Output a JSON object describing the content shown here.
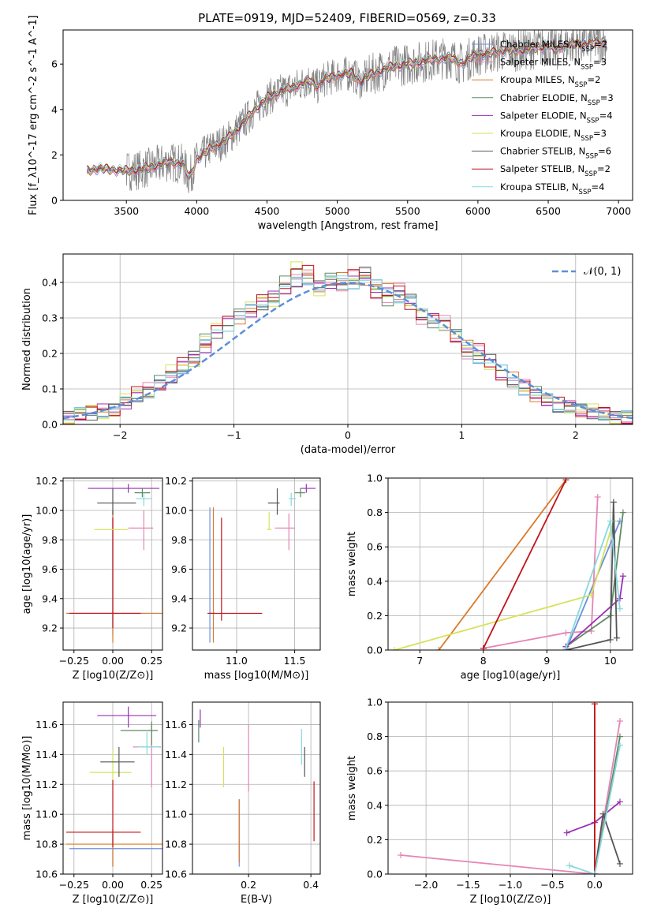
{
  "title": "PLATE=0919, MJD=52409, FIBERID=0569, z=0.33",
  "models": [
    {
      "name": "Chabrier MILES",
      "nssp": "2",
      "color": "#6b8fe0"
    },
    {
      "name": "Salpeter MILES",
      "nssp": "3",
      "color": "#e585b5"
    },
    {
      "name": "Kroupa MILES",
      "nssp": "2",
      "color": "#d97a2b"
    },
    {
      "name": "Chabrier ELODIE",
      "nssp": "3",
      "color": "#5e8a63"
    },
    {
      "name": "Salpeter ELODIE",
      "nssp": "4",
      "color": "#9a2fb5"
    },
    {
      "name": "Kroupa ELODIE",
      "nssp": "3",
      "color": "#d6e25a"
    },
    {
      "name": "Chabrier STELIB",
      "nssp": "6",
      "color": "#555555"
    },
    {
      "name": "Salpeter STELIB",
      "nssp": "2",
      "color": "#c0141a"
    },
    {
      "name": "Kroupa STELIB",
      "nssp": "4",
      "color": "#86d8dd"
    }
  ],
  "chart_data": [
    {
      "id": "spectrum",
      "type": "line",
      "xlabel": "wavelength [Angstrom, rest frame]",
      "ylabel": "Flux [f_λ10^-17 erg cm^-2 s^-1 A^-1]",
      "xlim": [
        3050,
        7100
      ],
      "ylim": [
        0,
        7.5
      ],
      "xticks": [
        3500,
        4000,
        4500,
        5000,
        5500,
        6000,
        6500,
        7000
      ],
      "yticks": [
        0,
        2,
        4,
        6
      ],
      "data_color": "#808080",
      "model_points": {
        "x": [
          3220,
          3300,
          3400,
          3500,
          3600,
          3700,
          3800,
          3900,
          3950,
          4000,
          4100,
          4200,
          4300,
          4400,
          4500,
          4600,
          4700,
          4800,
          4860,
          4900,
          5000,
          5100,
          5170,
          5200,
          5300,
          5400,
          5500,
          5600,
          5700,
          5800,
          5890,
          5950,
          6000,
          6100,
          6200,
          6300,
          6400,
          6500,
          6560,
          6600,
          6700,
          6800,
          6900
        ],
        "y": [
          1.3,
          1.4,
          1.35,
          1.3,
          1.35,
          1.5,
          1.7,
          1.6,
          1.0,
          1.8,
          2.3,
          2.6,
          3.2,
          3.9,
          4.5,
          4.8,
          5.0,
          5.3,
          5.0,
          5.3,
          5.5,
          5.6,
          5.2,
          5.4,
          5.7,
          5.9,
          6.0,
          6.1,
          6.2,
          6.3,
          6.0,
          6.3,
          6.4,
          6.5,
          6.6,
          6.6,
          6.7,
          6.8,
          6.6,
          6.8,
          6.9,
          6.9,
          7.0
        ]
      }
    },
    {
      "id": "residuals",
      "type": "step",
      "xlabel": "(data-model)/error",
      "ylabel": "Normed distribution",
      "xlim": [
        -2.5,
        2.5
      ],
      "ylim": [
        0,
        0.48
      ],
      "xticks": [
        -2,
        -1,
        0,
        1,
        2
      ],
      "yticks": [
        0.0,
        0.1,
        0.2,
        0.3,
        0.4
      ],
      "legend": "𝒩(0, 1)",
      "gauss_color": "#5b8fd8",
      "bins_start": -2.5,
      "bin_width": 0.1,
      "series": [
        {
          "values": [
            0.02,
            0.03,
            0.03,
            0.04,
            0.04,
            0.06,
            0.08,
            0.09,
            0.11,
            0.13,
            0.16,
            0.19,
            0.22,
            0.26,
            0.28,
            0.3,
            0.32,
            0.34,
            0.36,
            0.38,
            0.4,
            0.41,
            0.39,
            0.4,
            0.41,
            0.4,
            0.41,
            0.39,
            0.38,
            0.36,
            0.35,
            0.31,
            0.3,
            0.28,
            0.25,
            0.22,
            0.19,
            0.18,
            0.15,
            0.13,
            0.1,
            0.08,
            0.07,
            0.05,
            0.05,
            0.04,
            0.03,
            0.03,
            0.02,
            0.02
          ]
        },
        {
          "values": [
            0.02,
            0.03,
            0.04,
            0.03,
            0.04,
            0.07,
            0.09,
            0.1,
            0.12,
            0.15,
            0.17,
            0.18,
            0.24,
            0.27,
            0.29,
            0.31,
            0.33,
            0.35,
            0.35,
            0.4,
            0.44,
            0.43,
            0.38,
            0.41,
            0.39,
            0.42,
            0.43,
            0.37,
            0.35,
            0.38,
            0.34,
            0.3,
            0.29,
            0.29,
            0.25,
            0.2,
            0.21,
            0.17,
            0.14,
            0.12,
            0.11,
            0.09,
            0.07,
            0.06,
            0.05,
            0.04,
            0.04,
            0.03,
            0.02,
            0.02
          ]
        }
      ]
    },
    {
      "id": "age-vs-Z",
      "type": "errorbar",
      "xlabel": "Z [log10(Z/Z⊙)]",
      "ylabel": "age  [log10(age/yr)]",
      "xlim": [
        -0.32,
        0.32
      ],
      "ylim": [
        9.05,
        10.22
      ],
      "xticks": [
        -0.25,
        0.0,
        0.25
      ],
      "yticks": [
        9.2,
        9.4,
        9.6,
        9.8,
        10.0,
        10.2
      ],
      "points": [
        {
          "m": 0,
          "x": 0.0,
          "y": 9.3,
          "xe": [
            0.3,
            0.3
          ],
          "ye": [
            0.15,
            0.7
          ]
        },
        {
          "m": 2,
          "x": 0.0,
          "y": 9.3,
          "xe": [
            0.3,
            0.32
          ],
          "ye": [
            0.2,
            0.7
          ]
        },
        {
          "m": 7,
          "x": 0.0,
          "y": 9.3,
          "xe": [
            0.28,
            0.18
          ],
          "ye": [
            0.1,
            0.65
          ]
        },
        {
          "m": 1,
          "x": 0.2,
          "y": 9.88,
          "xe": [
            0.1,
            0.06
          ],
          "ye": [
            0.15,
            0.12
          ]
        },
        {
          "m": 5,
          "x": 0.0,
          "y": 9.87,
          "xe": [
            0.12,
            0.1
          ],
          "ye": [
            0.0,
            0.0
          ]
        },
        {
          "m": 6,
          "x": 0.0,
          "y": 10.05,
          "xe": [
            0.1,
            0.15
          ],
          "ye": [
            0.08,
            0.1
          ]
        },
        {
          "m": 4,
          "x": 0.1,
          "y": 10.15,
          "xe": [
            0.26,
            0.2
          ],
          "ye": [
            0.03,
            0.03
          ]
        },
        {
          "m": 3,
          "x": 0.19,
          "y": 10.12,
          "xe": [
            0.05,
            0.05
          ],
          "ye": [
            0.03,
            0.03
          ]
        },
        {
          "m": 8,
          "x": 0.2,
          "y": 10.08,
          "xe": [
            0.05,
            0.05
          ],
          "ye": [
            0.05,
            0.04
          ]
        }
      ]
    },
    {
      "id": "age-vs-mass",
      "type": "errorbar",
      "xlabel": "mass [log10(M/M⊙)]",
      "ylabel": "",
      "xlim": [
        10.62,
        11.72
      ],
      "ylim": [
        9.05,
        10.22
      ],
      "xticks": [
        11.0,
        11.5
      ],
      "yticks": [
        9.2,
        9.4,
        9.6,
        9.8,
        10.0,
        10.2
      ],
      "points": [
        {
          "m": 0,
          "x": 10.77,
          "y": 9.3,
          "xe": [
            0.02,
            0.02
          ],
          "ye": [
            0.2,
            0.72
          ]
        },
        {
          "m": 2,
          "x": 10.8,
          "y": 9.3,
          "xe": [
            0.02,
            0.02
          ],
          "ye": [
            0.2,
            0.72
          ]
        },
        {
          "m": 7,
          "x": 10.87,
          "y": 9.3,
          "xe": [
            0.12,
            0.35
          ],
          "ye": [
            0.05,
            0.65
          ]
        },
        {
          "m": 1,
          "x": 11.45,
          "y": 9.88,
          "xe": [
            0.12,
            0.05
          ],
          "ye": [
            0.15,
            0.1
          ]
        },
        {
          "m": 5,
          "x": 11.28,
          "y": 9.87,
          "xe": [
            0.02,
            0.02
          ],
          "ye": [
            0.0,
            0.12
          ]
        },
        {
          "m": 6,
          "x": 11.35,
          "y": 10.05,
          "xe": [
            0.08,
            0.02
          ],
          "ye": [
            0.08,
            0.1
          ]
        },
        {
          "m": 4,
          "x": 11.6,
          "y": 10.15,
          "xe": [
            0.05,
            0.08
          ],
          "ye": [
            0.03,
            0.03
          ]
        },
        {
          "m": 3,
          "x": 11.55,
          "y": 10.12,
          "xe": [
            0.05,
            0.04
          ],
          "ye": [
            0.03,
            0.03
          ]
        },
        {
          "m": 8,
          "x": 11.47,
          "y": 10.08,
          "xe": [
            0.02,
            0.04
          ],
          "ye": [
            0.05,
            0.04
          ]
        }
      ]
    },
    {
      "id": "weight-vs-age",
      "type": "line",
      "xlabel": "age  [log10(age/yr)]",
      "ylabel": "mass weight",
      "xlim": [
        6.5,
        10.35
      ],
      "ylim": [
        0.0,
        1.0
      ],
      "xticks": [
        7,
        8,
        9,
        10
      ],
      "yticks": [
        0.0,
        0.2,
        0.4,
        0.6,
        0.8,
        1.0
      ],
      "series": [
        {
          "m": 0,
          "x": [
            9.3,
            10.15
          ],
          "y": [
            0.0,
            0.75
          ]
        },
        {
          "m": 1,
          "x": [
            8.0,
            9.3,
            9.7,
            9.8
          ],
          "y": [
            0.01,
            0.1,
            0.11,
            0.89
          ]
        },
        {
          "m": 2,
          "x": [
            7.3,
            9.3
          ],
          "y": [
            0.0,
            0.99
          ]
        },
        {
          "m": 3,
          "x": [
            9.3,
            10.0,
            10.2
          ],
          "y": [
            0.02,
            0.2,
            0.8
          ]
        },
        {
          "m": 4,
          "x": [
            9.3,
            10.15,
            10.2
          ],
          "y": [
            0.02,
            0.3,
            0.43
          ]
        },
        {
          "m": 5,
          "x": [
            6.6,
            9.7,
            10.05
          ],
          "y": [
            0.0,
            0.32,
            0.75
          ]
        },
        {
          "m": 6,
          "x": [
            9.3,
            10.0,
            10.05,
            10.1
          ],
          "y": [
            0.0,
            0.06,
            0.86,
            0.07
          ]
        },
        {
          "m": 7,
          "x": [
            8.0,
            9.3
          ],
          "y": [
            0.01,
            0.99
          ]
        },
        {
          "m": 8,
          "x": [
            9.3,
            10.0,
            10.15
          ],
          "y": [
            0.01,
            0.75,
            0.24
          ]
        }
      ]
    },
    {
      "id": "mass-vs-Z",
      "type": "errorbar",
      "xlabel": "Z [log10(Z/Z⊙)]",
      "ylabel": "mass [log10(M/M⊙)]",
      "xlim": [
        -0.32,
        0.32
      ],
      "ylim": [
        10.6,
        11.75
      ],
      "xticks": [
        -0.25,
        0.0,
        0.25
      ],
      "yticks": [
        10.6,
        10.8,
        11.0,
        11.2,
        11.4,
        11.6
      ],
      "points": [
        {
          "m": 0,
          "x": 0.0,
          "y": 10.77,
          "xe": [
            0.28,
            0.32
          ],
          "ye": [
            0.12,
            0.1
          ]
        },
        {
          "m": 2,
          "x": 0.0,
          "y": 10.8,
          "xe": [
            0.3,
            0.32
          ],
          "ye": [
            0.15,
            0.1
          ]
        },
        {
          "m": 7,
          "x": 0.0,
          "y": 10.88,
          "xe": [
            0.3,
            0.18
          ],
          "ye": [
            0.1,
            0.35
          ]
        },
        {
          "m": 1,
          "x": 0.25,
          "y": 11.45,
          "xe": [
            0.12,
            0.06
          ],
          "ye": [
            0.27,
            0.15
          ]
        },
        {
          "m": 5,
          "x": 0.0,
          "y": 11.28,
          "xe": [
            0.15,
            0.12
          ],
          "ye": [
            0.05,
            0.15
          ]
        },
        {
          "m": 6,
          "x": 0.04,
          "y": 11.35,
          "xe": [
            0.12,
            0.1
          ],
          "ye": [
            0.1,
            0.1
          ]
        },
        {
          "m": 4,
          "x": 0.1,
          "y": 11.66,
          "xe": [
            0.2,
            0.18
          ],
          "ye": [
            0.08,
            0.06
          ]
        },
        {
          "m": 3,
          "x": 0.25,
          "y": 11.56,
          "xe": [
            0.2,
            0.04
          ],
          "ye": [
            0.1,
            0.06
          ]
        },
        {
          "m": 8,
          "x": 0.22,
          "y": 11.45,
          "xe": [
            0.06,
            0.08
          ],
          "ye": [
            0.05,
            0.1
          ]
        }
      ]
    },
    {
      "id": "mass-vs-ebv",
      "type": "errorbar",
      "xlabel": "E(B-V)",
      "ylabel": "",
      "xlim": [
        0.02,
        0.43
      ],
      "ylim": [
        10.6,
        11.75
      ],
      "xticks": [
        0.2,
        0.4
      ],
      "yticks": [
        10.6,
        10.8,
        11.0,
        11.2,
        11.4,
        11.6
      ],
      "points": [
        {
          "m": 0,
          "x": 0.17,
          "y": 10.8,
          "xe": [
            0,
            0
          ],
          "ye": [
            0.15,
            0.3
          ]
        },
        {
          "m": 2,
          "x": 0.17,
          "y": 10.8,
          "xe": [
            0,
            0
          ],
          "ye": [
            0.12,
            0.3
          ]
        },
        {
          "m": 1,
          "x": 0.2,
          "y": 11.45,
          "xe": [
            0,
            0
          ],
          "ye": [
            0.3,
            0.15
          ]
        },
        {
          "m": 5,
          "x": 0.12,
          "y": 11.3,
          "xe": [
            0,
            0
          ],
          "ye": [
            0.12,
            0.15
          ]
        },
        {
          "m": 6,
          "x": 0.38,
          "y": 11.35,
          "xe": [
            0,
            0
          ],
          "ye": [
            0.1,
            0.1
          ]
        },
        {
          "m": 3,
          "x": 0.04,
          "y": 11.56,
          "xe": [
            0,
            0
          ],
          "ye": [
            0.08,
            0.07
          ]
        },
        {
          "m": 4,
          "x": 0.045,
          "y": 11.62,
          "xe": [
            0,
            0
          ],
          "ye": [
            0.04,
            0.08
          ]
        },
        {
          "m": 8,
          "x": 0.37,
          "y": 11.45,
          "xe": [
            0,
            0
          ],
          "ye": [
            0.12,
            0.12
          ]
        },
        {
          "m": 7,
          "x": 0.41,
          "y": 11.0,
          "xe": [
            0,
            0
          ],
          "ye": [
            0.18,
            0.22
          ]
        }
      ]
    },
    {
      "id": "weight-vs-Z",
      "type": "line",
      "xlabel": "Z [log10(Z/Z⊙)]",
      "ylabel": "mass weight",
      "xlim": [
        -2.45,
        0.45
      ],
      "ylim": [
        0.0,
        1.0
      ],
      "xticks": [
        -2.0,
        -1.5,
        -1.0,
        -0.5,
        0.0
      ],
      "yticks": [
        0.0,
        0.2,
        0.4,
        0.6,
        0.8,
        1.0
      ],
      "series": [
        {
          "m": 1,
          "x": [
            -2.3,
            0.0,
            0.3
          ],
          "y": [
            0.11,
            0.0,
            0.89
          ]
        },
        {
          "m": 4,
          "x": [
            -0.33,
            0.0,
            0.3
          ],
          "y": [
            0.24,
            0.3,
            0.42
          ]
        },
        {
          "m": 3,
          "x": [
            0.0,
            0.3
          ],
          "y": [
            0.0,
            0.8
          ]
        },
        {
          "m": 6,
          "x": [
            0.0,
            0.1,
            0.3
          ],
          "y": [
            0.0,
            0.35,
            0.06
          ]
        },
        {
          "m": 2,
          "x": [
            0.0,
            0.0
          ],
          "y": [
            0.0,
            0.99
          ]
        },
        {
          "m": 7,
          "x": [
            0.0,
            0.0
          ],
          "y": [
            0.0,
            0.99
          ]
        },
        {
          "m": 8,
          "x": [
            -0.3,
            0.0,
            0.3
          ],
          "y": [
            0.05,
            0.0,
            0.75
          ]
        }
      ]
    }
  ]
}
